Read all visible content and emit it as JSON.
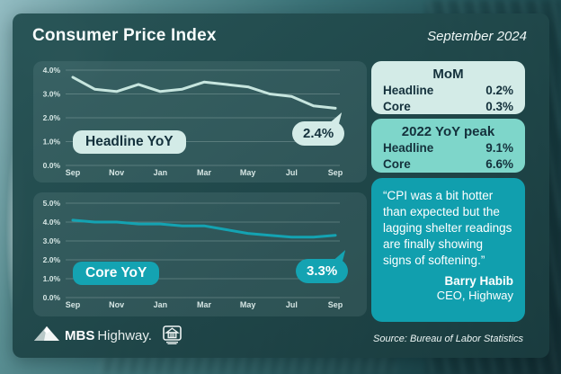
{
  "header": {
    "title": "Consumer Price Index",
    "date": "September 2024"
  },
  "chart_data": [
    {
      "type": "line",
      "title": "Headline YoY",
      "end_label": "2.4%",
      "x_ticks": [
        "Sep",
        "Nov",
        "Jan",
        "Mar",
        "May",
        "Jul",
        "Sep"
      ],
      "values": [
        3.7,
        3.2,
        3.1,
        3.4,
        3.1,
        3.2,
        3.5,
        3.4,
        3.3,
        3.0,
        2.9,
        2.5,
        2.4
      ],
      "y_ticks": [
        "4.0%",
        "3.0%",
        "2.0%",
        "1.0%",
        "0.0%"
      ],
      "ylim": [
        0,
        4.0
      ],
      "grid": true,
      "legend": "none",
      "line_color": "#c6e5de"
    },
    {
      "type": "line",
      "title": "Core YoY",
      "end_label": "3.3%",
      "x_ticks": [
        "Sep",
        "Nov",
        "Jan",
        "Mar",
        "May",
        "Jul",
        "Sep"
      ],
      "values": [
        4.1,
        4.0,
        4.0,
        3.9,
        3.9,
        3.8,
        3.8,
        3.6,
        3.4,
        3.3,
        3.2,
        3.2,
        3.3
      ],
      "y_ticks": [
        "5.0%",
        "4.0%",
        "3.0%",
        "2.0%",
        "1.0%",
        "0.0%"
      ],
      "ylim": [
        0,
        5.0
      ],
      "grid": true,
      "legend": "none",
      "line_color": "#14a3b2"
    }
  ],
  "stats": [
    {
      "title": "MoM",
      "rows": [
        {
          "label": "Headline",
          "value": "0.2%"
        },
        {
          "label": "Core",
          "value": "0.3%"
        }
      ]
    },
    {
      "title": "2022 YoY peak",
      "rows": [
        {
          "label": "Headline",
          "value": "9.1%"
        },
        {
          "label": "Core",
          "value": "6.6%"
        }
      ]
    }
  ],
  "quote": {
    "text": "“CPI was a bit hotter than expected but the lagging shelter readings are finally showing signs of softening.”",
    "author": "Barry Habib",
    "role": "CEO, Highway"
  },
  "footer": {
    "brand_bold": "MBS",
    "brand_rest": "Highway.",
    "logo_icon": "mountain-icon",
    "housing_icon": "equal-housing-icon",
    "source": "Source: Bureau of Labor Statistics"
  },
  "colors": {
    "teal": "#14a3b2",
    "quote": "#119fae",
    "mint-light": "#d3ebe7",
    "mint-mid": "#7ed6ca",
    "text-dark": "#14313c",
    "card": "#1f4749",
    "line-light": "#c6e5de"
  }
}
